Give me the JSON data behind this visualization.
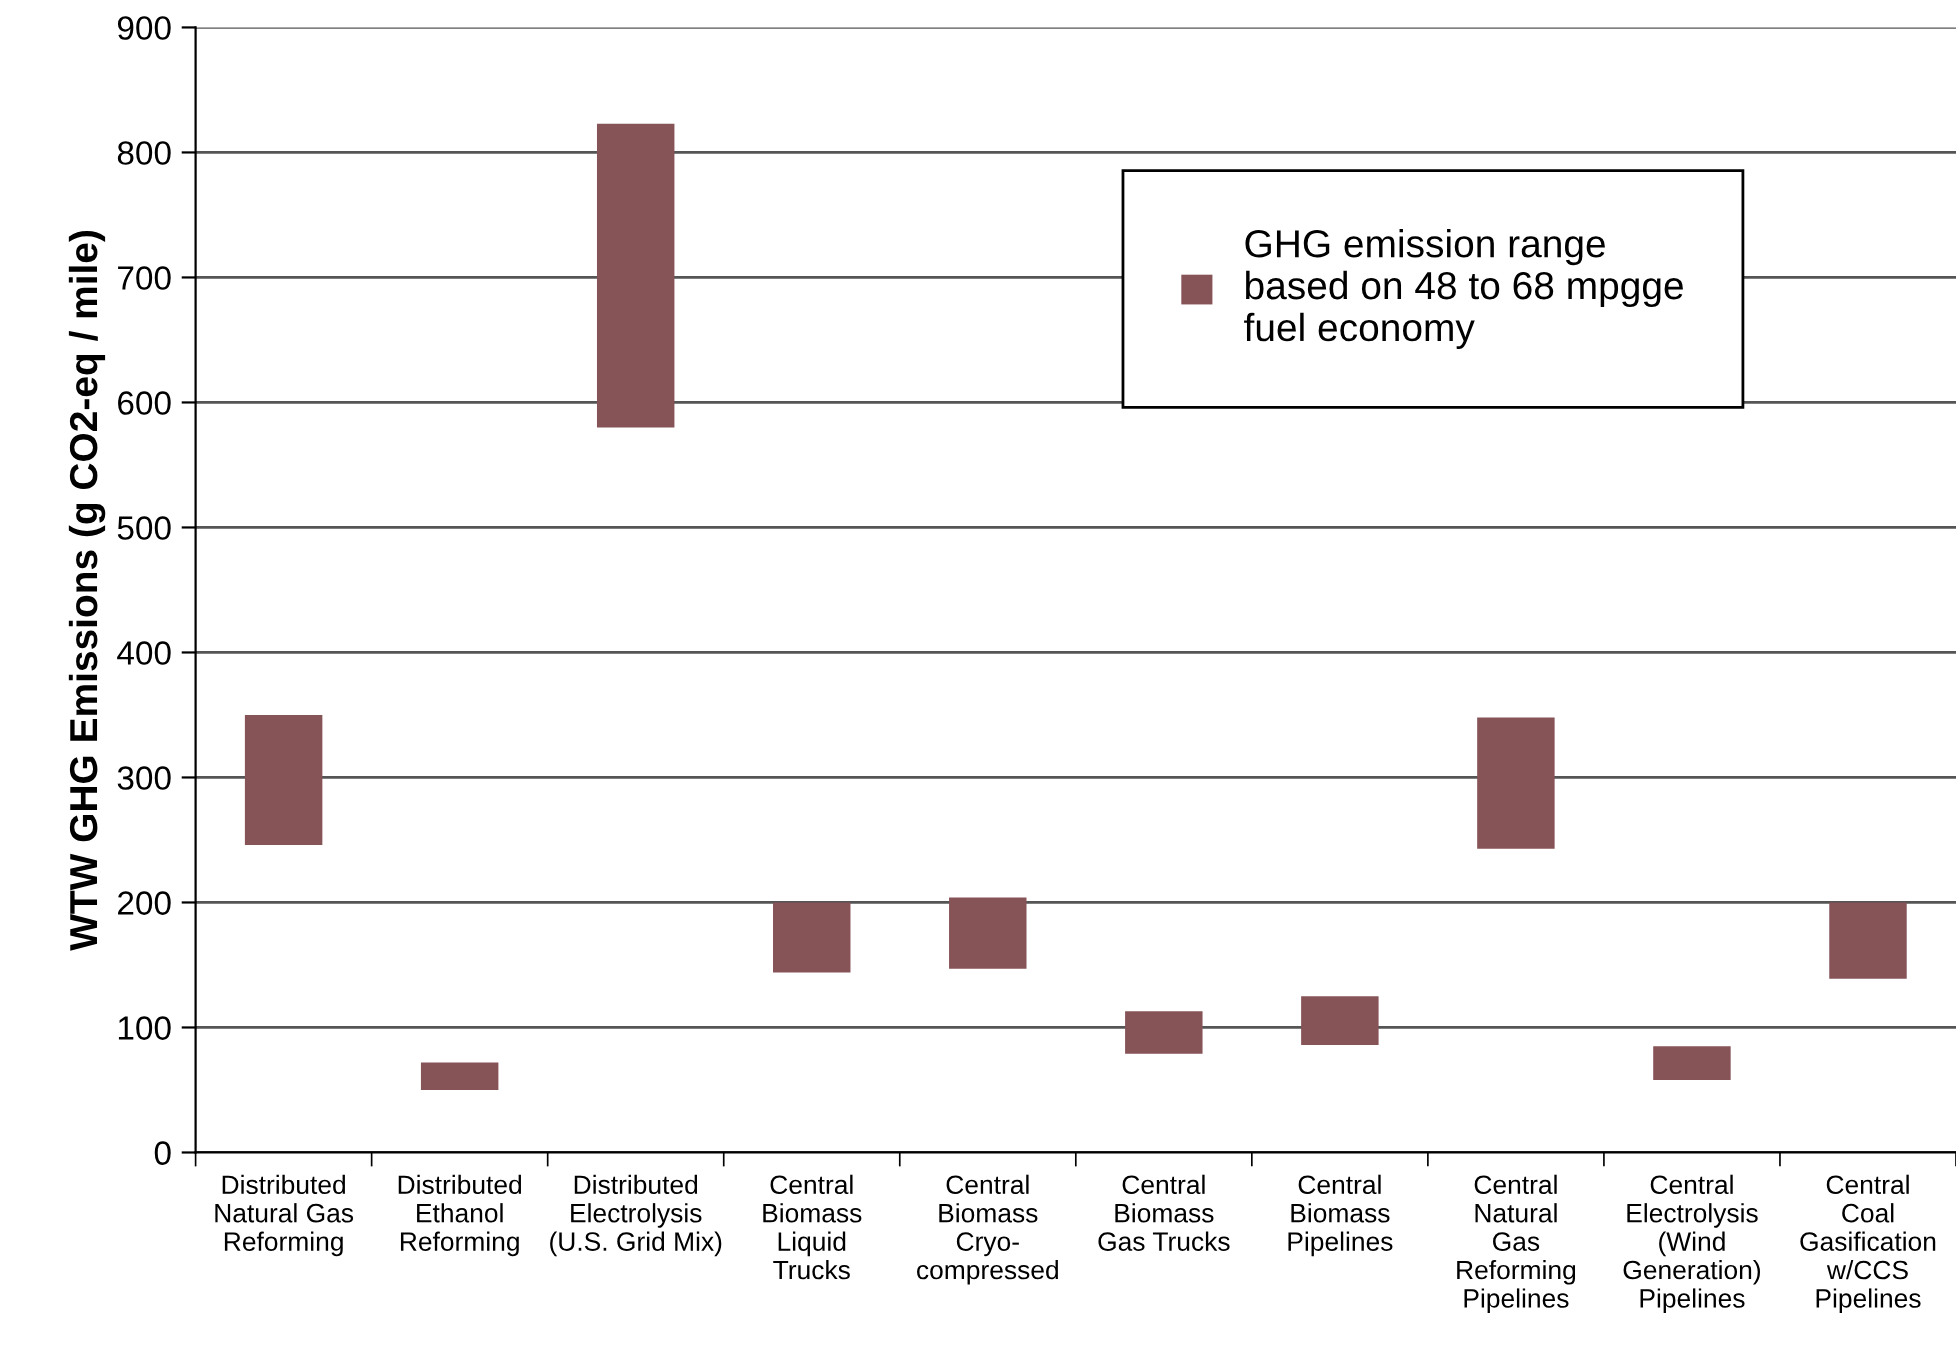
{
  "chart_data": {
    "type": "bar",
    "ylabel": "WTW GHG Emissions (g CO2-eq / mile)",
    "categories": [
      "Distributed\nNatural Gas\nReforming",
      "Distributed\nEthanol\nReforming",
      "Distributed\nElectrolysis\n(U.S. Grid Mix)",
      "Central\nBiomass\nLiquid\nTrucks",
      "Central\nBiomass\nCryo-\ncompressed",
      "Central\nBiomass\nGas Trucks",
      "Central\nBiomass\nPipelines",
      "Central\nNatural\nGas\nReforming\nPipelines",
      "Central\nElectrolysis\n(Wind\nGeneration)\nPipelines",
      "Central\nCoal\nGasification\nw/CCS\nPipelines"
    ],
    "series": [
      {
        "name": "GHG emission range\nbased on 48 to 68 mpgge\nfuel economy",
        "color": "#865357",
        "base": [
          246,
          50,
          580,
          144,
          147,
          79,
          86,
          243,
          58,
          139
        ],
        "values": [
          104,
          22,
          243,
          56,
          57,
          34,
          39,
          105,
          27,
          61
        ]
      }
    ],
    "ylim": [
      0,
      900
    ],
    "yticks": [
      0,
      100,
      200,
      300,
      400,
      500,
      600,
      700,
      800,
      900
    ],
    "grid": "y",
    "legend": "top right"
  }
}
